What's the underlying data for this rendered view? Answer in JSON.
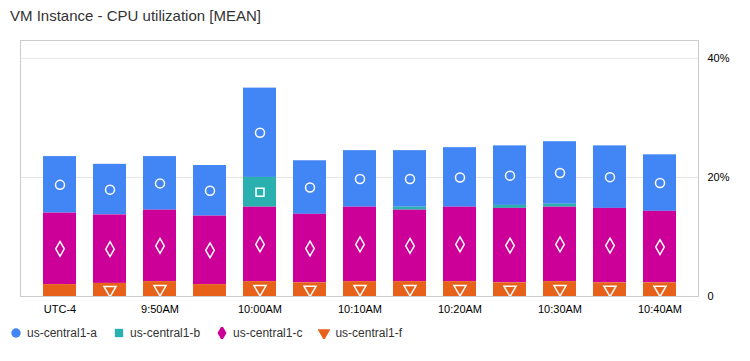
{
  "chart_data": {
    "type": "bar",
    "stacked": true,
    "title": "VM Instance - CPU utilization [MEAN]",
    "categories": [
      "UTC-4",
      null,
      "9:50AM",
      null,
      "10:00AM",
      null,
      "10:10AM",
      null,
      "10:20AM",
      null,
      "10:30AM",
      null,
      "10:40AM"
    ],
    "series": [
      {
        "name": "us-central1-a",
        "color": "#4285F4",
        "marker": "circle",
        "values": [
          9.5,
          8.5,
          9.0,
          8.5,
          15.0,
          9.0,
          9.5,
          9.5,
          10.0,
          10.0,
          10.5,
          10.5,
          9.5
        ]
      },
      {
        "name": "us-central1-b",
        "color": "#2BB0B0",
        "marker": "square",
        "values": [
          0.0,
          0.0,
          0.0,
          0.0,
          5.0,
          0.0,
          0.0,
          0.5,
          0.0,
          0.5,
          0.5,
          0.0,
          0.0
        ]
      },
      {
        "name": "us-central1-c",
        "color": "#CC0099",
        "marker": "diamond",
        "values": [
          12.0,
          11.5,
          12.0,
          11.5,
          12.5,
          11.5,
          12.5,
          12.0,
          12.5,
          12.5,
          12.5,
          12.5,
          12.0
        ]
      },
      {
        "name": "us-central1-f",
        "color": "#E8611A",
        "marker": "triangle-down",
        "values": [
          2.0,
          2.2,
          2.5,
          2.0,
          2.5,
          2.3,
          2.5,
          2.5,
          2.5,
          2.3,
          2.5,
          2.3,
          2.3
        ]
      }
    ],
    "ylim": [
      0,
      43
    ],
    "yticks": [
      0,
      {
        "value": 20,
        "label": "20%"
      },
      {
        "value": 40,
        "label": "40%"
      }
    ],
    "grid": true,
    "legend": "bottom"
  }
}
